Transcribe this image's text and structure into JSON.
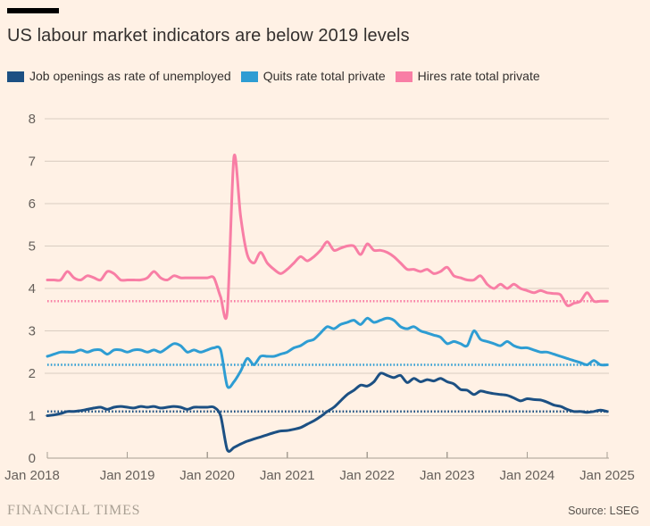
{
  "page": {
    "background_color": "#FFF1E5"
  },
  "header": {
    "title": "US labour market indicators are below 2019 levels",
    "accent_bar_color": "#000000"
  },
  "footer": {
    "brand": "FINANCIAL TIMES",
    "source": "Source: LSEG"
  },
  "style": {
    "gridline_color": "#D9CDC1",
    "axis_color": "#A79E93",
    "tick_label_color": "#66605B",
    "title_color": "#33302E"
  },
  "chart_data": {
    "type": "line",
    "title": "US labour market indicators are below 2019 levels",
    "x_unit": "month",
    "x_range": [
      "Jan 2018",
      "Jan 2025"
    ],
    "x_tick_labels": [
      "Jan 2018",
      "Jan 2019",
      "Jan 2020",
      "Jan 2021",
      "Jan 2022",
      "Jan 2023",
      "Jan 2024",
      "Jan 2025"
    ],
    "ylim": [
      0,
      8
    ],
    "y_ticks": [
      0,
      1,
      2,
      3,
      4,
      5,
      6,
      7,
      8
    ],
    "grid": true,
    "legend_position": "top",
    "reference_lines_style": "dotted",
    "series": [
      {
        "name": "Hires rate total private",
        "color": "#F87EA5",
        "line_style": "solid",
        "reference_level_2019": 3.7,
        "values": [
          4.2,
          4.2,
          4.2,
          4.4,
          4.25,
          4.2,
          4.3,
          4.25,
          4.2,
          4.4,
          4.35,
          4.2,
          4.2,
          4.2,
          4.2,
          4.25,
          4.4,
          4.25,
          4.2,
          4.3,
          4.25,
          4.25,
          4.25,
          4.25,
          4.25,
          4.25,
          3.8,
          3.45,
          7.1,
          5.7,
          4.8,
          4.6,
          4.85,
          4.6,
          4.45,
          4.35,
          4.45,
          4.6,
          4.75,
          4.65,
          4.75,
          4.9,
          5.1,
          4.9,
          4.95,
          5.0,
          5.0,
          4.8,
          5.05,
          4.9,
          4.9,
          4.85,
          4.75,
          4.6,
          4.45,
          4.45,
          4.4,
          4.45,
          4.35,
          4.4,
          4.5,
          4.3,
          4.25,
          4.2,
          4.2,
          4.3,
          4.1,
          4.0,
          4.1,
          4.0,
          4.1,
          4.0,
          3.95,
          3.9,
          3.95,
          3.9,
          3.88,
          3.85,
          3.6,
          3.65,
          3.7,
          3.9,
          3.7,
          3.7,
          3.7
        ]
      },
      {
        "name": "Quits rate total private",
        "color": "#2E9DD3",
        "line_style": "solid",
        "reference_level_2019": 2.2,
        "values": [
          2.4,
          2.45,
          2.5,
          2.5,
          2.5,
          2.55,
          2.5,
          2.55,
          2.55,
          2.45,
          2.55,
          2.55,
          2.5,
          2.55,
          2.55,
          2.5,
          2.55,
          2.5,
          2.6,
          2.7,
          2.65,
          2.5,
          2.55,
          2.5,
          2.55,
          2.6,
          2.55,
          1.7,
          1.8,
          2.05,
          2.35,
          2.2,
          2.4,
          2.4,
          2.4,
          2.45,
          2.5,
          2.6,
          2.65,
          2.75,
          2.8,
          2.95,
          3.1,
          3.05,
          3.15,
          3.2,
          3.25,
          3.15,
          3.3,
          3.2,
          3.25,
          3.3,
          3.25,
          3.1,
          3.05,
          3.1,
          3.0,
          2.95,
          2.9,
          2.85,
          2.7,
          2.75,
          2.7,
          2.65,
          3.0,
          2.8,
          2.75,
          2.7,
          2.65,
          2.75,
          2.65,
          2.6,
          2.6,
          2.55,
          2.5,
          2.5,
          2.45,
          2.4,
          2.35,
          2.3,
          2.25,
          2.2,
          2.3,
          2.2,
          2.2
        ]
      },
      {
        "name": "Job openings as rate of unemployed",
        "color": "#1C5083",
        "line_style": "solid",
        "reference_level_2019": 1.1,
        "values": [
          1.0,
          1.02,
          1.05,
          1.1,
          1.1,
          1.12,
          1.15,
          1.18,
          1.2,
          1.15,
          1.2,
          1.22,
          1.2,
          1.18,
          1.22,
          1.2,
          1.22,
          1.18,
          1.2,
          1.22,
          1.2,
          1.15,
          1.2,
          1.2,
          1.2,
          1.2,
          1.0,
          0.2,
          0.25,
          0.33,
          0.4,
          0.45,
          0.5,
          0.55,
          0.6,
          0.64,
          0.65,
          0.68,
          0.72,
          0.8,
          0.88,
          0.98,
          1.1,
          1.2,
          1.35,
          1.5,
          1.6,
          1.72,
          1.7,
          1.8,
          2.0,
          1.95,
          1.9,
          1.95,
          1.78,
          1.88,
          1.8,
          1.85,
          1.82,
          1.88,
          1.8,
          1.75,
          1.62,
          1.6,
          1.5,
          1.58,
          1.55,
          1.52,
          1.5,
          1.48,
          1.42,
          1.35,
          1.4,
          1.38,
          1.37,
          1.32,
          1.25,
          1.22,
          1.15,
          1.1,
          1.1,
          1.08,
          1.1,
          1.13,
          1.1
        ]
      }
    ],
    "legend_order": [
      "Job openings as rate of unemployed",
      "Quits rate total private",
      "Hires rate total private"
    ]
  }
}
